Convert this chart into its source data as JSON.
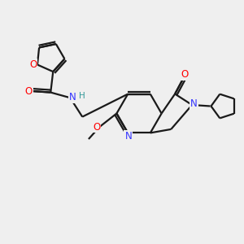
{
  "background_color": "#efefef",
  "bond_color": "#1a1a1a",
  "nitrogen_color": "#3333ff",
  "oxygen_color": "#ff0000",
  "hydrogen_color": "#339999",
  "line_width": 1.6,
  "font_size": 8.5,
  "xlim": [
    0,
    10
  ],
  "ylim": [
    0,
    10
  ]
}
